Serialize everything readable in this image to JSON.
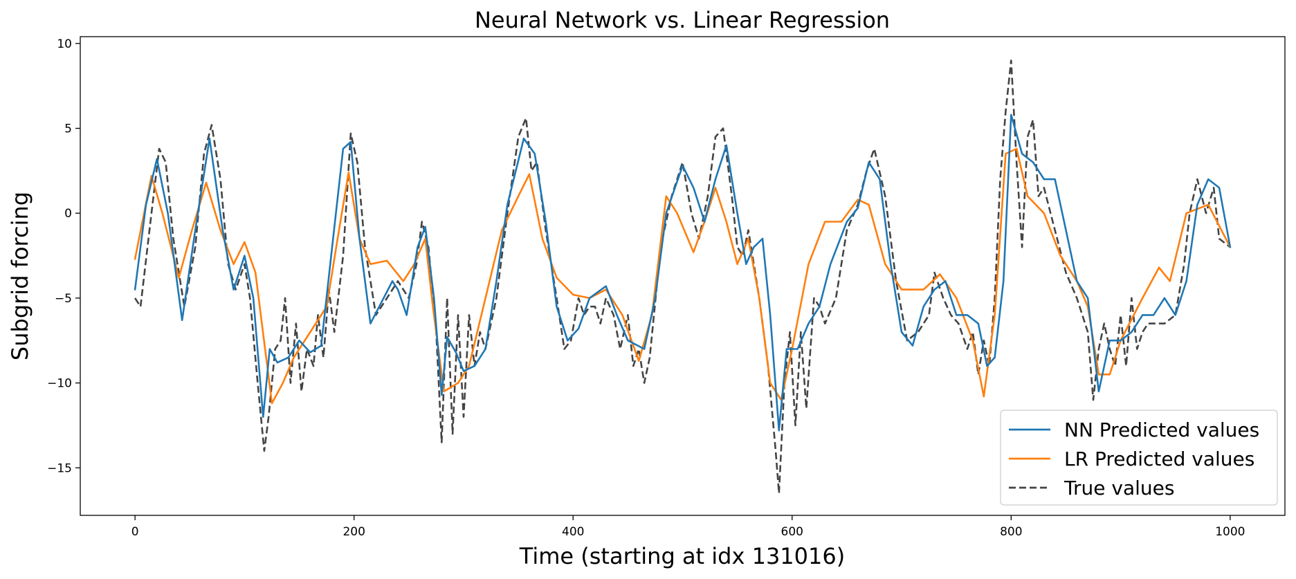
{
  "chart_data": {
    "type": "line",
    "title": "Neural Network vs. Linear Regression",
    "xlabel": "Time (starting at idx 131016)",
    "ylabel": "Subgrid forcing",
    "xlim": [
      -50,
      1050
    ],
    "ylim": [
      -17.8,
      10.4
    ],
    "xticks": [
      0,
      200,
      400,
      600,
      800,
      1000
    ],
    "yticks": [
      -15,
      -10,
      -5,
      0,
      5,
      10
    ],
    "grid": false,
    "legend_position": "lower-right",
    "series": [
      {
        "name": "NN Predicted values",
        "color": "#1f77b4",
        "style": "solid",
        "x": [
          0,
          10,
          20,
          30,
          43,
          55,
          68,
          80,
          90,
          100,
          108,
          117,
          123,
          130,
          140,
          150,
          160,
          170,
          180,
          190,
          197,
          205,
          215,
          223,
          235,
          240,
          248,
          258,
          265,
          273,
          280,
          285,
          293,
          300,
          310,
          320,
          330,
          340,
          355,
          365,
          375,
          385,
          395,
          405,
          415,
          430,
          440,
          450,
          465,
          475,
          485,
          500,
          510,
          520,
          530,
          540,
          550,
          558,
          565,
          573,
          580,
          588,
          595,
          605,
          615,
          625,
          635,
          650,
          660,
          670,
          680,
          690,
          700,
          710,
          720,
          730,
          740,
          750,
          760,
          770,
          778,
          785,
          793,
          800,
          810,
          820,
          830,
          840,
          850,
          860,
          870,
          880,
          890,
          900,
          910,
          920,
          930,
          940,
          950,
          960,
          970,
          980,
          990,
          1000
        ],
        "y": [
          -4.5,
          0.5,
          3.2,
          0.0,
          -6.3,
          -1.0,
          4.4,
          -1.0,
          -4.5,
          -2.5,
          -5.0,
          -12.0,
          -8.0,
          -8.8,
          -8.5,
          -7.5,
          -8.2,
          -7.8,
          -2.0,
          3.8,
          4.2,
          -1.5,
          -6.5,
          -5.5,
          -4.0,
          -4.5,
          -6.0,
          -2.0,
          -0.8,
          -5.0,
          -10.7,
          -7.3,
          -8.2,
          -9.3,
          -9.0,
          -8.0,
          -4.0,
          0.5,
          4.4,
          3.5,
          -0.5,
          -5.5,
          -7.5,
          -6.8,
          -5.0,
          -4.3,
          -6.0,
          -7.5,
          -8.0,
          -5.0,
          0.0,
          2.8,
          1.5,
          -0.5,
          2.0,
          4.0,
          0.0,
          -3.0,
          -2.0,
          -1.5,
          -6.0,
          -12.8,
          -8.0,
          -8.0,
          -6.5,
          -5.5,
          -3.0,
          -0.5,
          0.3,
          3.0,
          2.0,
          -3.0,
          -7.0,
          -7.8,
          -5.5,
          -4.5,
          -4.0,
          -6.0,
          -6.0,
          -6.5,
          -9.0,
          -8.5,
          -4.0,
          5.8,
          3.5,
          3.0,
          2.0,
          2.0,
          -1.0,
          -4.0,
          -5.0,
          -10.5,
          -7.5,
          -7.5,
          -7.0,
          -6.0,
          -6.0,
          -5.0,
          -6.0,
          -4.0,
          0.5,
          2.0,
          1.5,
          -2.0
        ]
      },
      {
        "name": "LR Predicted values",
        "color": "#ff7f0e",
        "style": "solid",
        "x": [
          0,
          15,
          25,
          40,
          52,
          65,
          78,
          90,
          100,
          110,
          125,
          135,
          145,
          160,
          175,
          185,
          195,
          205,
          215,
          230,
          245,
          255,
          265,
          272,
          282,
          295,
          305,
          320,
          335,
          350,
          360,
          372,
          385,
          400,
          415,
          430,
          445,
          460,
          472,
          485,
          495,
          510,
          520,
          530,
          540,
          550,
          560,
          570,
          580,
          590,
          600,
          615,
          630,
          645,
          660,
          670,
          685,
          700,
          720,
          735,
          750,
          765,
          775,
          785,
          795,
          805,
          815,
          830,
          845,
          860,
          870,
          880,
          890,
          900,
          920,
          935,
          945,
          960,
          980,
          1000
        ],
        "y": [
          -2.7,
          2.2,
          0.0,
          -3.8,
          -1.0,
          1.8,
          -1.0,
          -3.0,
          -1.7,
          -3.5,
          -11.2,
          -10.0,
          -8.5,
          -7.0,
          -5.5,
          -1.5,
          2.4,
          -1.5,
          -3.0,
          -2.8,
          -4.0,
          -3.0,
          -1.5,
          -5.5,
          -10.5,
          -10.0,
          -9.0,
          -5.0,
          -1.0,
          1.0,
          2.3,
          -1.5,
          -3.8,
          -4.8,
          -5.0,
          -4.5,
          -6.0,
          -8.7,
          -6.0,
          1.0,
          0.0,
          -2.3,
          -0.5,
          1.5,
          -0.5,
          -3.0,
          -1.5,
          -5.0,
          -10.0,
          -11.0,
          -8.0,
          -3.0,
          -0.5,
          -0.5,
          0.8,
          0.5,
          -3.0,
          -4.5,
          -4.5,
          -3.6,
          -5.0,
          -7.5,
          -10.8,
          -6.0,
          3.5,
          3.8,
          1.0,
          0.0,
          -2.5,
          -4.0,
          -5.5,
          -9.5,
          -9.5,
          -7.5,
          -5.0,
          -3.2,
          -4.0,
          0.0,
          0.5,
          -2.0
        ]
      },
      {
        "name": "True values",
        "color": "#444444",
        "style": "dashed",
        "x": [
          0,
          5,
          15,
          22,
          28,
          35,
          45,
          55,
          63,
          70,
          78,
          85,
          92,
          100,
          105,
          112,
          118,
          122,
          128,
          133,
          137,
          142,
          147,
          152,
          157,
          163,
          167,
          172,
          177,
          182,
          190,
          197,
          203,
          210,
          220,
          230,
          240,
          250,
          257,
          262,
          268,
          275,
          280,
          285,
          290,
          295,
          300,
          305,
          310,
          315,
          320,
          330,
          340,
          350,
          357,
          362,
          367,
          375,
          385,
          392,
          398,
          405,
          410,
          415,
          420,
          425,
          430,
          437,
          443,
          450,
          455,
          460,
          465,
          470,
          480,
          490,
          500,
          508,
          515,
          523,
          530,
          537,
          545,
          550,
          555,
          560,
          565,
          570,
          578,
          585,
          588,
          593,
          598,
          603,
          608,
          613,
          620,
          625,
          630,
          640,
          650,
          660,
          668,
          675,
          685,
          695,
          705,
          715,
          725,
          730,
          738,
          745,
          752,
          760,
          765,
          770,
          775,
          780,
          785,
          790,
          795,
          800,
          805,
          810,
          815,
          820,
          825,
          830,
          840,
          850,
          860,
          870,
          875,
          880,
          885,
          890,
          895,
          900,
          905,
          910,
          915,
          920,
          925,
          930,
          940,
          950,
          958,
          963,
          970,
          978,
          985,
          990,
          1000
        ],
        "y": [
          -5.0,
          -5.5,
          0.0,
          3.8,
          3.0,
          -1.5,
          -5.5,
          -2.0,
          3.5,
          5.2,
          2.0,
          -3.0,
          -4.5,
          -3.0,
          -5.0,
          -10.0,
          -14.0,
          -12.0,
          -8.0,
          -7.5,
          -5.0,
          -10.0,
          -6.5,
          -10.5,
          -8.0,
          -9.0,
          -6.0,
          -8.5,
          -4.5,
          -7.0,
          -2.5,
          4.7,
          3.0,
          -2.0,
          -6.0,
          -5.0,
          -4.0,
          -5.0,
          -3.0,
          -0.5,
          -2.0,
          -7.0,
          -13.5,
          -5.0,
          -13.0,
          -6.0,
          -12.0,
          -6.0,
          -9.0,
          -7.0,
          -8.0,
          -5.0,
          0.0,
          4.5,
          5.6,
          2.5,
          3.0,
          -1.0,
          -5.0,
          -8.0,
          -7.5,
          -5.0,
          -6.0,
          -5.5,
          -5.5,
          -6.5,
          -5.0,
          -6.0,
          -8.0,
          -6.0,
          -9.0,
          -8.0,
          -10.0,
          -8.5,
          -2.0,
          1.0,
          3.0,
          0.0,
          -1.5,
          1.0,
          4.5,
          5.0,
          1.0,
          -2.0,
          -2.5,
          -1.0,
          -3.0,
          -5.0,
          -9.0,
          -14.0,
          -16.5,
          -10.0,
          -7.0,
          -12.5,
          -7.0,
          -11.5,
          -5.0,
          -5.5,
          -6.5,
          -5.0,
          -1.0,
          0.5,
          2.5,
          3.8,
          1.0,
          -4.0,
          -7.5,
          -7.0,
          -6.0,
          -3.5,
          -5.0,
          -6.0,
          -6.5,
          -8.0,
          -7.0,
          -9.5,
          -7.5,
          -9.0,
          -5.0,
          2.0,
          6.0,
          9.0,
          3.0,
          -2.0,
          4.5,
          5.5,
          1.0,
          1.5,
          -1.0,
          -3.5,
          -5.0,
          -7.0,
          -11.0,
          -8.0,
          -6.5,
          -8.0,
          -9.0,
          -6.0,
          -9.0,
          -5.0,
          -8.0,
          -7.0,
          -6.5,
          -6.5,
          -6.5,
          -6.0,
          -3.0,
          0.0,
          2.0,
          0.0,
          1.5,
          -1.5,
          -2.0
        ]
      }
    ]
  }
}
